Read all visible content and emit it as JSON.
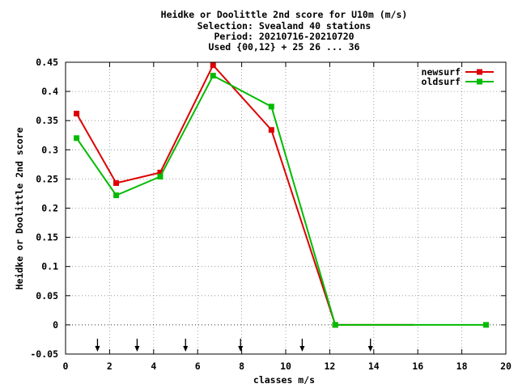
{
  "chart_data": {
    "type": "line",
    "title_lines": [
      "Heidke or Doolittle 2nd score  for U10m (m/s)",
      "Selection: Svealand     40 stations",
      "Period: 20210716-20210720",
      "Used {00,12} + 25 26 ... 36"
    ],
    "xlabel": "classes m/s",
    "ylabel": "Heidke or Doolittle 2nd score",
    "xlim": [
      0,
      20
    ],
    "ylim": [
      -0.05,
      0.45
    ],
    "x_ticks": [
      0,
      2,
      4,
      6,
      8,
      10,
      12,
      14,
      16,
      18,
      20
    ],
    "x_tick_labels": [
      "0",
      "2",
      "4",
      "6",
      "8",
      "10",
      "12",
      "14",
      "16",
      "18",
      "20"
    ],
    "y_ticks": [
      -0.05,
      0,
      0.05,
      0.1,
      0.15,
      0.2,
      0.25,
      0.3,
      0.35,
      0.4,
      0.45
    ],
    "y_tick_labels": [
      "-0.05",
      "0",
      "0.05",
      "0.1",
      "0.15",
      "0.2",
      "0.25",
      "0.3",
      "0.35",
      "0.4",
      "0.45"
    ],
    "grid": true,
    "legend_position": "top-right",
    "series": [
      {
        "name": "newsurf",
        "color": "#dd0000",
        "x": [
          0.5,
          2.3,
          4.3,
          6.7,
          9.35,
          12.25,
          15.8
        ],
        "y": [
          0.362,
          0.243,
          0.261,
          0.445,
          0.334,
          0.0,
          0.0
        ],
        "marker_indices": [
          0,
          1,
          2,
          3,
          4,
          5
        ]
      },
      {
        "name": "oldsurf",
        "color": "#00bb00",
        "x": [
          0.5,
          2.3,
          4.3,
          6.7,
          9.35,
          12.25,
          19.1
        ],
        "y": [
          0.32,
          0.222,
          0.254,
          0.427,
          0.374,
          0.0,
          0.0
        ],
        "marker_indices": [
          0,
          1,
          2,
          3,
          4,
          5,
          6
        ]
      }
    ],
    "class_boundary_arrows_x": [
      1.45,
      3.25,
      5.45,
      7.95,
      10.75,
      13.85
    ]
  }
}
